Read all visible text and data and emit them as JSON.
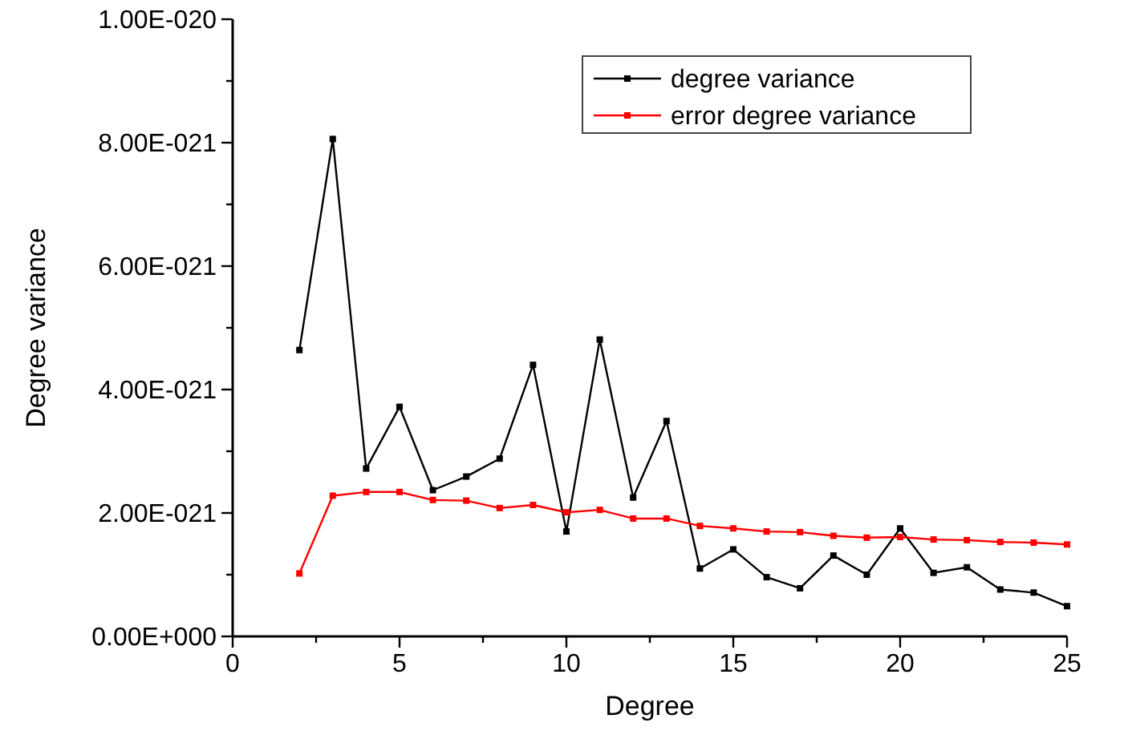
{
  "chart_data": {
    "type": "line",
    "xlabel": "Degree",
    "ylabel": "Degree variance",
    "xlim": [
      0,
      25
    ],
    "ylim": [
      0,
      1e-20
    ],
    "xticks": [
      0,
      {
        "value": 2.5,
        "label": null
      },
      5,
      {
        "value": 7.5,
        "label": null
      },
      10,
      {
        "value": 12.5,
        "label": null
      },
      15,
      {
        "value": 17.5,
        "label": null
      },
      20,
      {
        "value": 22.5,
        "label": null
      },
      25
    ],
    "yticks": [
      {
        "value": 0,
        "label": "0.00E+000"
      },
      {
        "value": 1e-21,
        "label": null
      },
      {
        "value": 2e-21,
        "label": "2.00E-021"
      },
      {
        "value": 3e-21,
        "label": null
      },
      {
        "value": 4e-21,
        "label": "4.00E-021"
      },
      {
        "value": 5e-21,
        "label": null
      },
      {
        "value": 6e-21,
        "label": "6.00E-021"
      },
      {
        "value": 7e-21,
        "label": null
      },
      {
        "value": 8e-21,
        "label": "8.00E-021"
      },
      {
        "value": 9e-21,
        "label": null
      },
      {
        "value": 1e-20,
        "label": "1.00E-020"
      }
    ],
    "x": [
      2,
      3,
      4,
      5,
      6,
      7,
      8,
      9,
      10,
      11,
      12,
      13,
      14,
      15,
      16,
      17,
      18,
      19,
      20,
      21,
      22,
      23,
      24,
      25
    ],
    "series": [
      {
        "name": "degree variance",
        "color": "#000000",
        "values": [
          4.64e-21,
          8.06e-21,
          2.72e-21,
          3.72e-21,
          2.37e-21,
          2.59e-21,
          2.88e-21,
          4.4e-21,
          1.7e-21,
          4.81e-21,
          2.25e-21,
          3.49e-21,
          1.1e-21,
          1.41e-21,
          9.6e-22,
          7.8e-22,
          1.31e-21,
          1e-21,
          1.75e-21,
          1.03e-21,
          1.12e-21,
          7.6e-22,
          7.1e-22,
          4.9e-22
        ]
      },
      {
        "name": "error degree variance",
        "color": "#ff0000",
        "values": [
          1.02e-21,
          2.28e-21,
          2.34e-21,
          2.34e-21,
          2.21e-21,
          2.2e-21,
          2.08e-21,
          2.13e-21,
          2.01e-21,
          2.05e-21,
          1.91e-21,
          1.91e-21,
          1.79e-21,
          1.75e-21,
          1.7e-21,
          1.69e-21,
          1.63e-21,
          1.6e-21,
          1.61e-21,
          1.57e-21,
          1.56e-21,
          1.53e-21,
          1.52e-21,
          1.49e-21
        ]
      }
    ],
    "marker": "square",
    "line_style": "solid",
    "legend": "top right",
    "grid": false
  }
}
